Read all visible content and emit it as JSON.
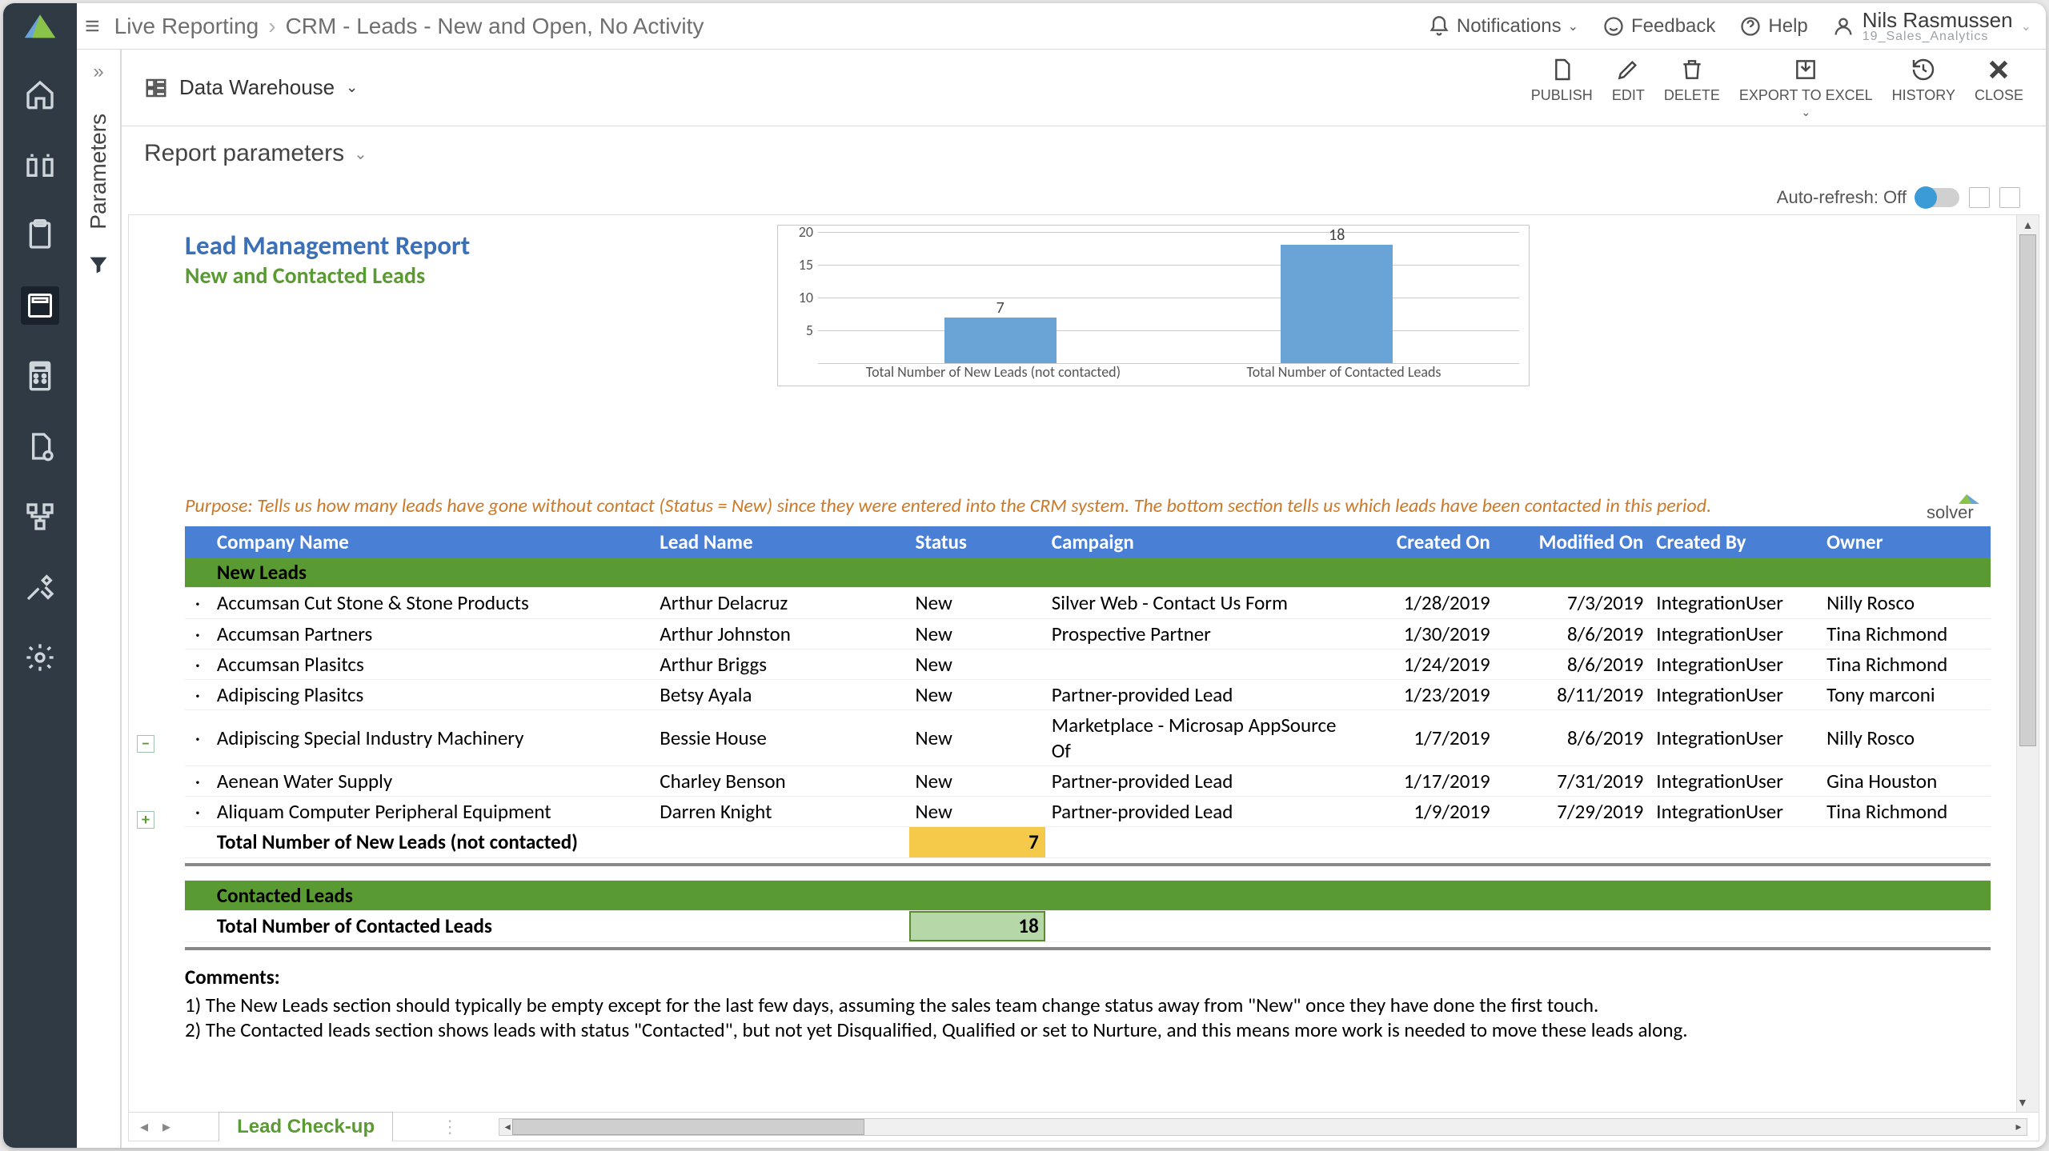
{
  "breadcrumb": {
    "root": "Live Reporting",
    "page": "CRM - Leads - New and Open, No Activity"
  },
  "topbar": {
    "notifications": "Notifications",
    "feedback": "Feedback",
    "help": "Help",
    "user_name": "Nils Rasmussen",
    "user_sub": "19_Sales_Analytics"
  },
  "toolbar": {
    "data_source": "Data Warehouse",
    "publish": "PUBLISH",
    "edit": "EDIT",
    "delete": "DELETE",
    "export": "EXPORT TO EXCEL",
    "history": "HISTORY",
    "close": "CLOSE"
  },
  "params_label": "Parameters",
  "params_header": "Report parameters",
  "auto_refresh": "Auto-refresh: Off",
  "report": {
    "title": "Lead Management Report",
    "subtitle": "New and Contacted Leads",
    "purpose": "Purpose: Tells us how many leads have gone without contact (Status = New) since they were entered into the CRM system.  The bottom section tells us which leads have been contacted in this period.",
    "chart": {
      "type": "bar",
      "ylim": [
        0,
        20
      ],
      "ytick_step": 5,
      "yticks": [
        "20",
        "15",
        "10",
        "5"
      ],
      "categories": [
        "Total Number of New Leads (not contacted)",
        "Total Number of Contacted Leads"
      ],
      "values": [
        7,
        18
      ],
      "bar_color": "#6aa3d5",
      "grid_color": "#cccccc",
      "bg": "#ffffff"
    },
    "columns": [
      "Company Name",
      "Lead Name",
      "Status",
      "Campaign",
      "Created On",
      "Modified On",
      "Created By",
      "Owner"
    ],
    "section_new": "New Leads",
    "rows_new": [
      [
        "Accumsan Cut Stone & Stone Products",
        "Arthur Delacruz",
        "New",
        "Silver Web - Contact Us Form",
        "1/28/2019",
        "7/3/2019",
        "IntegrationUser",
        "Nilly Rosco"
      ],
      [
        "Accumsan Partners",
        "Arthur Johnston",
        "New",
        "Prospective Partner",
        "1/30/2019",
        "8/6/2019",
        "IntegrationUser",
        "Tina Richmond"
      ],
      [
        "Accumsan Plasitcs",
        "Arthur Briggs",
        "New",
        "",
        "1/24/2019",
        "8/6/2019",
        "IntegrationUser",
        "Tina Richmond"
      ],
      [
        "Adipiscing Plasitcs",
        "Betsy Ayala",
        "New",
        "Partner-provided Lead",
        "1/23/2019",
        "8/11/2019",
        "IntegrationUser",
        "Tony marconi"
      ],
      [
        "Adipiscing Special Industry Machinery",
        "Bessie House",
        "New",
        "Marketplace - Microsap AppSource Of",
        "1/7/2019",
        "8/6/2019",
        "IntegrationUser",
        "Nilly Rosco"
      ],
      [
        "Aenean Water Supply",
        "Charley Benson",
        "New",
        "Partner-provided Lead",
        "1/17/2019",
        "7/31/2019",
        "IntegrationUser",
        "Gina Houston"
      ],
      [
        "Aliquam Computer Peripheral Equipment",
        "Darren Knight",
        "New",
        "Partner-provided Lead",
        "1/9/2019",
        "7/29/2019",
        "IntegrationUser",
        "Tina Richmond"
      ]
    ],
    "total_new_label": "Total Number of New Leads (not contacted)",
    "total_new_value": "7",
    "section_contacted": "Contacted Leads",
    "total_contacted_label": "Total Number of Contacted Leads",
    "total_contacted_value": "18",
    "comments_header": "Comments:",
    "comment1": "1) The New Leads section should typically be empty except for the last few days, assuming the sales team change status away from \"New\" once they have done the first touch.",
    "comment2": "2) The Contacted leads section shows leads with status \"Contacted\", but not yet Disqualified, Qualified or set to Nurture, and this means more work is needed to move these leads along."
  },
  "sheet_tab": "Lead Check-up"
}
